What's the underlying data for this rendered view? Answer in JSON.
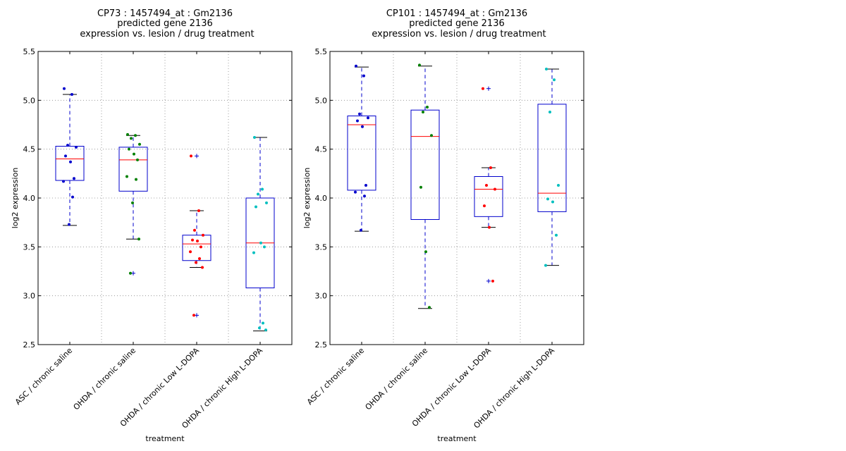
{
  "chart_data": [
    {
      "type": "box",
      "title_lines": [
        "CP73 : 1457494_at : Gm2136",
        "predicted gene 2136",
        "expression vs. lesion / drug treatment"
      ],
      "xlabel": "treatment",
      "ylabel": "log2 expression",
      "ylim": [
        2.5,
        5.5
      ],
      "yticks": [
        "2.5",
        "3.0",
        "3.5",
        "4.0",
        "4.5",
        "5.0",
        "5.5"
      ],
      "grid": true,
      "categories": [
        "ASC / chronic saline",
        "OHDA / chronic saline",
        "OHDA / chronic Low L-DOPA",
        "OHDA / chronic High L-DOPA"
      ],
      "colors": [
        "#0000cc",
        "#008000",
        "#ff0000",
        "#00bfbf"
      ],
      "boxes": [
        {
          "whisker_low": 3.72,
          "q1": 4.18,
          "median": 4.4,
          "q3": 4.53,
          "whisker_high": 5.06,
          "outliers": []
        },
        {
          "whisker_low": 3.58,
          "q1": 4.07,
          "median": 4.39,
          "q3": 4.52,
          "whisker_high": 4.64,
          "outliers": [
            3.23
          ]
        },
        {
          "whisker_low": 3.29,
          "q1": 3.36,
          "median": 3.53,
          "q3": 3.62,
          "whisker_high": 3.87,
          "outliers": [
            4.43,
            2.8
          ]
        },
        {
          "whisker_low": 2.64,
          "q1": 3.08,
          "median": 3.54,
          "q3": 4.0,
          "whisker_high": 4.62,
          "outliers": []
        }
      ],
      "points": [
        [
          5.12,
          5.06,
          4.54,
          4.52,
          4.43,
          4.37,
          4.2,
          4.17,
          4.01,
          3.73
        ],
        [
          4.65,
          4.64,
          4.61,
          4.55,
          4.5,
          4.45,
          4.39,
          4.22,
          4.19,
          3.95,
          3.58,
          3.23
        ],
        [
          4.43,
          3.87,
          3.67,
          3.62,
          3.57,
          3.56,
          3.5,
          3.45,
          3.38,
          3.34,
          3.29,
          2.8
        ],
        [
          4.62,
          4.09,
          4.04,
          3.95,
          3.91,
          3.54,
          3.5,
          3.44,
          2.72,
          2.67,
          2.65
        ]
      ]
    },
    {
      "type": "box",
      "title_lines": [
        "CP101 : 1457494_at : Gm2136",
        "predicted gene 2136",
        "expression vs. lesion / drug treatment"
      ],
      "xlabel": "treatment",
      "ylabel": "log2 expression",
      "ylim": [
        2.5,
        5.5
      ],
      "yticks": [
        "2.5",
        "3.0",
        "3.5",
        "4.0",
        "4.5",
        "5.0",
        "5.5"
      ],
      "grid": true,
      "categories": [
        "ASC / chronic saline",
        "OHDA / chronic saline",
        "OHDA / chronic Low L-DOPA",
        "OHDA / chronic High L-DOPA"
      ],
      "colors": [
        "#0000cc",
        "#008000",
        "#ff0000",
        "#00bfbf"
      ],
      "boxes": [
        {
          "whisker_low": 3.66,
          "q1": 4.08,
          "median": 4.75,
          "q3": 4.84,
          "whisker_high": 5.34,
          "outliers": []
        },
        {
          "whisker_low": 2.87,
          "q1": 3.78,
          "median": 4.63,
          "q3": 4.9,
          "whisker_high": 5.35,
          "outliers": []
        },
        {
          "whisker_low": 3.7,
          "q1": 3.81,
          "median": 4.09,
          "q3": 4.22,
          "whisker_high": 4.31,
          "outliers": [
            5.12,
            3.15
          ]
        },
        {
          "whisker_low": 3.31,
          "q1": 3.86,
          "median": 4.05,
          "q3": 4.96,
          "whisker_high": 5.32,
          "outliers": []
        }
      ],
      "points": [
        [
          5.35,
          5.25,
          4.86,
          4.82,
          4.79,
          4.73,
          4.13,
          4.06,
          4.02,
          3.67
        ],
        [
          5.36,
          4.93,
          4.88,
          4.64,
          4.11,
          3.45,
          2.88
        ],
        [
          5.12,
          4.31,
          4.13,
          4.09,
          3.92,
          3.7,
          3.15
        ],
        [
          5.32,
          5.21,
          4.88,
          4.13,
          3.99,
          3.96,
          3.62,
          3.31
        ]
      ]
    }
  ]
}
